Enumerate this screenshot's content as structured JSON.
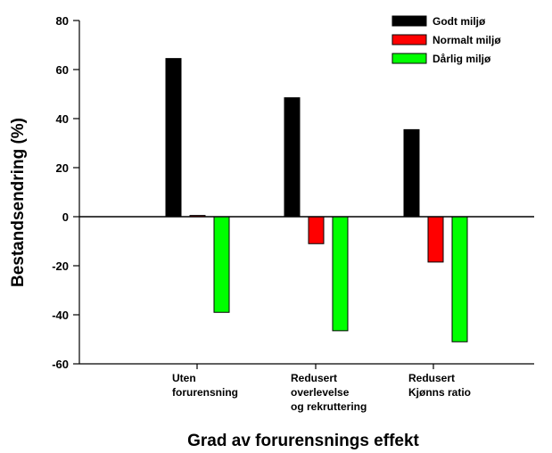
{
  "chart_data": {
    "type": "bar",
    "xlabel": "Grad av forurensnings effekt",
    "ylabel": "Bestandsendring (%)",
    "ylim": [
      -60,
      80
    ],
    "yticks": [
      -60,
      -40,
      -20,
      0,
      20,
      40,
      60,
      80
    ],
    "grid": false,
    "legend_position": "top-right",
    "categories": [
      [
        "Uten",
        "forurensning"
      ],
      [
        "Redusert",
        "overlevelse",
        "og rekruttering"
      ],
      [
        "Redusert",
        "Kjønns ratio"
      ]
    ],
    "series": [
      {
        "name": "Godt miljø",
        "color": "#000000",
        "values": [
          64.5,
          48.5,
          35.5
        ]
      },
      {
        "name": "Normalt miljø",
        "color": "#ff0000",
        "values": [
          0.5,
          -11,
          -18.5
        ]
      },
      {
        "name": "Dårlig miljø",
        "color": "#00ff00",
        "values": [
          -39,
          -46.5,
          -51
        ]
      }
    ]
  }
}
